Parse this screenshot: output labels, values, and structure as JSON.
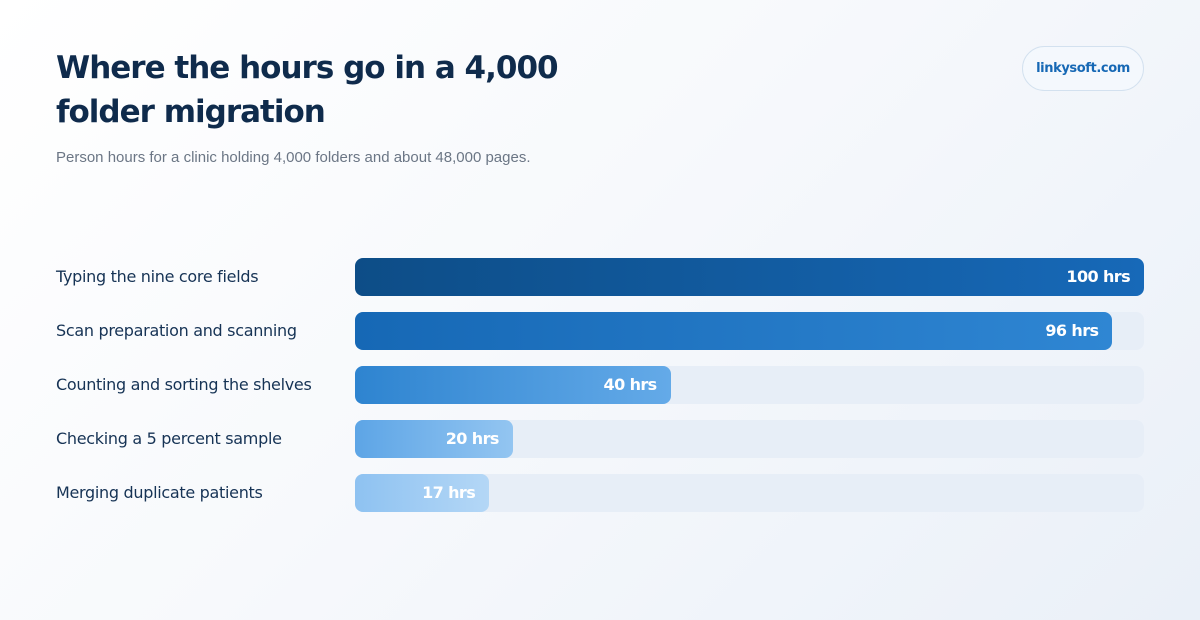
{
  "header": {
    "title": "Where the hours go in a 4,000 folder migration",
    "subtitle": "Person hours for a clinic holding 4,000 folders and about 48,000 pages.",
    "brand": "linkysoft.com"
  },
  "chart_data": {
    "type": "bar",
    "orientation": "horizontal",
    "title": "Where the hours go in a 4,000 folder migration",
    "subtitle": "Person hours for a clinic holding 4,000 folders and about 48,000 pages.",
    "categories": [
      "Typing the nine core fields",
      "Scan preparation and scanning",
      "Counting and sorting the shelves",
      "Checking a 5 percent sample",
      "Merging duplicate patients"
    ],
    "values": [
      100,
      96,
      40,
      20,
      17
    ],
    "value_labels": [
      "100 hrs",
      "96 hrs",
      "40 hrs",
      "20 hrs",
      "17 hrs"
    ],
    "unit": "hrs",
    "xlim": [
      0,
      100
    ],
    "grid": false,
    "legend": "none",
    "colors": {
      "bar_gradients": [
        [
          "#0d4d87",
          "#1769b8"
        ],
        [
          "#1668b5",
          "#2f86d3"
        ],
        [
          "#2e84d0",
          "#64aae8"
        ],
        [
          "#5da5e6",
          "#93c5f1"
        ],
        [
          "#8ec2f1",
          "#b4d7f6"
        ]
      ],
      "track": "#e7eef7",
      "title": "#0f2b4c",
      "brand": "#1668b5"
    }
  }
}
